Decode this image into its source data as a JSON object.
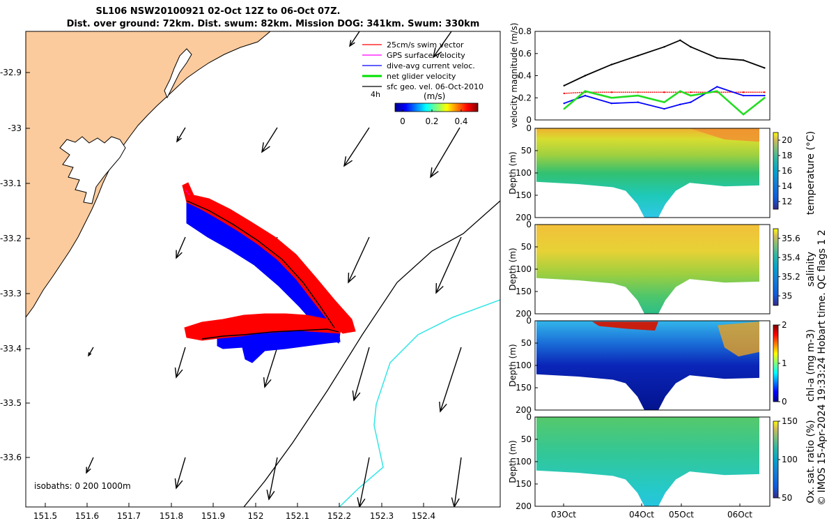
{
  "title": {
    "line1": "SL106 NSW20100921 02-Oct 12Z to 06-Oct 07Z.",
    "line2": "Dist. over ground: 72km. Dist. swum: 82km. Mission DOG: 341km. Swum: 330km"
  },
  "map": {
    "x_ticks": [
      "151.5",
      "151.6",
      "151.7",
      "151.8",
      "151.9",
      "152",
      "152.1",
      "152.2",
      "152.3",
      "152.4"
    ],
    "y_ticks": [
      "-32.9",
      "-33",
      "-33.1",
      "-33.2",
      "-33.3",
      "-33.4",
      "-33.5",
      "-33.6"
    ],
    "legend": [
      {
        "label": "25cm/s swim vector",
        "color": "#ff0000"
      },
      {
        "label": "GPS surface velocity",
        "color": "#ff00ff"
      },
      {
        "label": "dive-avg current veloc.",
        "color": "#0000ff"
      },
      {
        "label": "net glider velocity",
        "color": "#00e000"
      },
      {
        "label": "sfc geo. vel. 06-Oct-2010",
        "color": "#000000"
      }
    ],
    "scale_label": "4h",
    "colorbar_unit": "(m/s)",
    "colorbar_ticks": [
      "0",
      "0.2",
      "0.4"
    ],
    "isobaths": "isobaths: 0   200  1000m",
    "colors": {
      "land": "#fbcb9d",
      "coast": "#000000",
      "isobath_200": "#000000",
      "isobath_1000": "#33e5e5"
    }
  },
  "velocity_plot": {
    "ylabel": "velocity magnitude (m/s)",
    "y_ticks": [
      "0",
      "0.2",
      "0.4",
      "0.6",
      "0.8"
    ],
    "series": [
      {
        "color": "#000000"
      },
      {
        "color": "#ff0000"
      },
      {
        "color": "#0000ff"
      },
      {
        "color": "#22dd22"
      }
    ]
  },
  "panels": [
    {
      "ylabel": "Depth (m)",
      "y_ticks": [
        "0",
        "50",
        "100",
        "150",
        "200"
      ],
      "cbar_label": "temperature (°C)",
      "cbar_ticks": [
        "12",
        "14",
        "16",
        "18",
        "20"
      ]
    },
    {
      "ylabel": "Depth (m)",
      "y_ticks": [
        "0",
        "50",
        "100",
        "150",
        "200"
      ],
      "cbar_label": "salinity",
      "cbar_ticks": [
        "35",
        "35.2",
        "35.4",
        "35.6"
      ]
    },
    {
      "ylabel": "Depth (m)",
      "y_ticks": [
        "0",
        "50",
        "100",
        "150",
        "200"
      ],
      "cbar_label": "chl-a (mg m-3)",
      "cbar_ticks": [
        "0",
        "1",
        "2"
      ]
    },
    {
      "ylabel": "Depth (m)",
      "y_ticks": [
        "0",
        "50",
        "100",
        "150",
        "200"
      ],
      "cbar_label": "Ox. sat. ratio (%)",
      "cbar_ticks": [
        "50",
        "100",
        "150"
      ]
    }
  ],
  "x_ticks_time": [
    "03Oct",
    "04Oct",
    "05Oct",
    "06Oct"
  ],
  "side_note": "© IMOS 15-Apr-2024 19:33:24 Hobart time. QC flags 1  2",
  "chart_data": {
    "type": "line",
    "title": "SL106 NSW20100921 02-Oct 12Z to 06-Oct 07Z.",
    "ylabel": "velocity magnitude (m/s)",
    "ylim": [
      0,
      0.8
    ],
    "x": [
      "02.6",
      "03.0",
      "03.5",
      "04.0",
      "04.5",
      "04.8",
      "05.0",
      "05.5",
      "06.0",
      "06.4"
    ],
    "series": [
      {
        "values": [
          0.31,
          0.4,
          0.5,
          0.58,
          0.66,
          0.72,
          0.66,
          0.56,
          0.54,
          0.47
        ]
      },
      {
        "values": [
          0.24,
          0.25,
          0.25,
          0.25,
          0.25,
          0.25,
          0.25,
          0.25,
          0.25,
          0.25
        ]
      },
      {
        "values": [
          0.15,
          0.22,
          0.15,
          0.16,
          0.1,
          0.14,
          0.16,
          0.3,
          0.22,
          0.22
        ]
      },
      {
        "values": [
          0.1,
          0.26,
          0.2,
          0.22,
          0.16,
          0.26,
          0.22,
          0.26,
          0.05,
          0.2
        ]
      }
    ]
  }
}
